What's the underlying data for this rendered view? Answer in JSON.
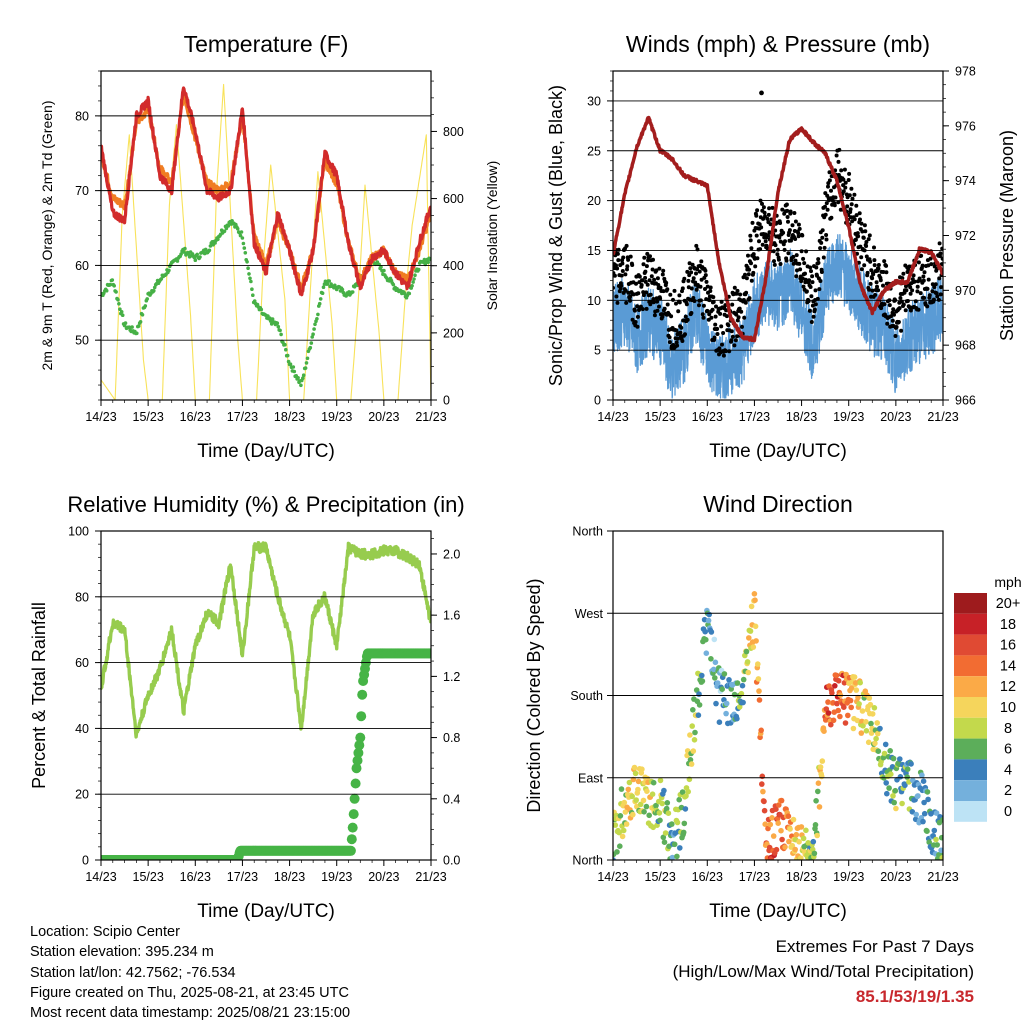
{
  "colors": {
    "temp_red": "#d22b2b",
    "temp_orange": "#f07d22",
    "dewpoint_green": "#46b046",
    "solar_yellow": "#f8e25a",
    "wind_blue": "#5a9bd5",
    "gust_black": "#000000",
    "pressure_maroon": "#a31d1d",
    "rh_lightgreen": "#97cc4e",
    "precip_green": "#46b446",
    "extremes_text": "#c8282d"
  },
  "x_axis": {
    "label": "Time (Day/UTC)",
    "ticks": [
      "14/23",
      "15/23",
      "16/23",
      "17/23",
      "18/23",
      "19/23",
      "20/23",
      "21/23"
    ]
  },
  "chart_data": [
    {
      "id": "temperature",
      "type": "line",
      "title": "Temperature (F)",
      "xlabel": "Time (Day/UTC)",
      "ylabel": "2m & 9m T (Red, Orange) & 2m Td (Green)",
      "y2label": "Solar Insolation (Yellow)",
      "ylim": [
        42,
        86
      ],
      "y2lim": [
        0,
        980
      ],
      "yticks": [
        50,
        60,
        70,
        80
      ],
      "y2ticks": [
        0,
        200,
        400,
        600,
        800
      ],
      "grid": true,
      "x": [
        0,
        0.25,
        0.5,
        0.75,
        1,
        1.25,
        1.5,
        1.75,
        2,
        2.25,
        2.5,
        2.75,
        3,
        3.25,
        3.5,
        3.75,
        4,
        4.25,
        4.5,
        4.75,
        5,
        5.25,
        5.5,
        5.75,
        6,
        6.25,
        6.5,
        6.75,
        7
      ],
      "series": [
        {
          "id": "t2m",
          "values": [
            76,
            67,
            66,
            80,
            82,
            72,
            70,
            84,
            78,
            70,
            69,
            70,
            81,
            63,
            59,
            67,
            62,
            56,
            62,
            75,
            72,
            63,
            57,
            61,
            62,
            59,
            57,
            63,
            68
          ]
        },
        {
          "id": "t9m",
          "values": [
            75,
            69,
            68,
            79,
            81,
            73,
            71,
            83,
            77,
            71,
            70,
            71,
            80,
            64,
            60,
            66,
            62,
            57,
            62,
            74,
            71,
            63,
            58,
            61,
            62,
            59,
            58,
            62,
            67
          ]
        },
        {
          "id": "td2m",
          "values": [
            56,
            58,
            52,
            51,
            56,
            58,
            60,
            62,
            61,
            62,
            64,
            66,
            64,
            55,
            53,
            52,
            47,
            44,
            51,
            58,
            57,
            56,
            58,
            61,
            59,
            57,
            56,
            60,
            61
          ]
        },
        {
          "id": "solar",
          "x": [
            0,
            0.3,
            0.45,
            0.6,
            0.9,
            1,
            1.3,
            1.45,
            1.6,
            1.9,
            2,
            2.3,
            2.45,
            2.6,
            2.9,
            3,
            3.3,
            3.45,
            3.6,
            3.9,
            4,
            4.3,
            4.45,
            4.6,
            4.9,
            5,
            5.3,
            5.45,
            5.6,
            5.9,
            6,
            6.3,
            6.45,
            6.6,
            6.9,
            7
          ],
          "values": [
            60,
            0,
            550,
            790,
            120,
            0,
            0,
            580,
            820,
            250,
            0,
            0,
            620,
            940,
            180,
            0,
            0,
            420,
            700,
            300,
            0,
            0,
            350,
            680,
            230,
            0,
            0,
            280,
            640,
            200,
            0,
            0,
            300,
            520,
            790,
            0
          ]
        }
      ]
    },
    {
      "id": "winds",
      "type": "scatter",
      "title": "Winds (mph) & Pressure (mb)",
      "xlabel": "Time (Day/UTC)",
      "ylabel": "Sonic/Prop Wind & Gust (Blue, Black)",
      "y2label": "Station Pressure (Maroon)",
      "ylim": [
        0,
        33
      ],
      "y2lim": [
        966,
        978
      ],
      "yticks": [
        0,
        5,
        10,
        15,
        20,
        25,
        30
      ],
      "y2ticks": [
        966,
        968,
        970,
        972,
        974,
        976,
        978
      ],
      "grid": true,
      "x": [
        0,
        0.25,
        0.5,
        0.75,
        1,
        1.25,
        1.5,
        1.75,
        2,
        2.25,
        2.5,
        2.75,
        3,
        3.25,
        3.5,
        3.75,
        4,
        4.25,
        4.5,
        4.75,
        5,
        5.25,
        5.5,
        5.75,
        6,
        6.25,
        6.5,
        6.75,
        7
      ],
      "series": [
        {
          "id": "wind",
          "values": [
            8,
            9,
            6,
            8,
            7,
            3,
            5,
            9,
            5,
            3,
            4,
            5,
            9,
            11,
            10,
            12,
            9,
            5,
            11,
            14,
            12,
            10,
            8,
            7,
            4,
            6,
            7,
            8,
            9
          ]
        },
        {
          "id": "gust",
          "values": [
            12,
            13,
            10,
            12,
            11,
            8,
            9,
            13,
            10,
            7,
            8,
            9,
            16,
            18,
            16,
            17,
            14,
            10,
            18,
            23,
            20,
            16,
            13,
            11,
            9,
            11,
            12,
            12,
            13
          ]
        },
        {
          "id": "pressure",
          "values": [
            971.3,
            973.5,
            975.2,
            976.3,
            975.1,
            974.8,
            974.2,
            974.0,
            973.8,
            971.0,
            969.0,
            968.3,
            968.2,
            970.5,
            973.6,
            975.5,
            975.9,
            975.4,
            975.0,
            974.0,
            972.3,
            970.2,
            969.2,
            970.0,
            970.3,
            970.3,
            971.5,
            971.4,
            970.6
          ]
        }
      ]
    },
    {
      "id": "humidity",
      "type": "line",
      "title": "Relative Humidity (%) & Precipitation (in)",
      "xlabel": "Time (Day/UTC)",
      "ylabel": "Percent & Total Rainfall",
      "ylim": [
        0,
        100
      ],
      "y2lim": [
        0,
        2.15
      ],
      "yticks": [
        0,
        20,
        40,
        60,
        80,
        100
      ],
      "y2ticks": [
        "0.0",
        "0.4",
        "0.8",
        "1.2",
        "1.6",
        "2.0"
      ],
      "grid": true,
      "x": [
        0,
        0.25,
        0.5,
        0.75,
        1,
        1.25,
        1.5,
        1.75,
        2,
        2.25,
        2.5,
        2.75,
        3,
        3.25,
        3.5,
        3.75,
        4,
        4.25,
        4.5,
        4.75,
        5,
        5.25,
        5.5,
        5.75,
        6,
        6.25,
        6.5,
        6.75,
        7
      ],
      "series": [
        {
          "id": "rh",
          "values": [
            52,
            72,
            70,
            38,
            50,
            58,
            70,
            45,
            65,
            75,
            72,
            90,
            62,
            95,
            95,
            80,
            68,
            40,
            75,
            80,
            65,
            95,
            93,
            93,
            94,
            94,
            92,
            90,
            72
          ]
        },
        {
          "id": "precip",
          "x": [
            0,
            2.9,
            2.95,
            5.3,
            5.35,
            5.42,
            5.5,
            5.55,
            5.65,
            7
          ],
          "values": [
            0,
            0,
            0.06,
            0.06,
            0.25,
            0.6,
            0.8,
            1.15,
            1.35,
            1.35
          ]
        }
      ]
    },
    {
      "id": "direction",
      "type": "scatter",
      "title": "Wind Direction",
      "xlabel": "Time (Day/UTC)",
      "ylabel": "Direction (Colored By Speed)",
      "ylim": [
        0,
        360
      ],
      "ytick_labels": [
        "North",
        "East",
        "South",
        "West",
        "North"
      ],
      "grid": true,
      "x": [
        0,
        0.25,
        0.5,
        0.75,
        1,
        1.25,
        1.5,
        1.75,
        2,
        2.25,
        2.5,
        2.75,
        3,
        3.25,
        3.5,
        3.75,
        4,
        4.25,
        4.5,
        4.75,
        5,
        5.25,
        5.5,
        5.75,
        6,
        6.25,
        6.5,
        6.75,
        7
      ],
      "series": [
        {
          "id": "dir",
          "values": [
            20,
            60,
            85,
            60,
            70,
            10,
            60,
            160,
            260,
            180,
            170,
            180,
            270,
            10,
            40,
            25,
            10,
            5,
            160,
            180,
            175,
            170,
            150,
            100,
            85,
            80,
            70,
            40,
            15
          ]
        },
        {
          "id": "speed",
          "values": [
            6,
            9,
            10,
            9,
            7,
            5,
            7,
            8,
            4,
            3,
            4,
            6,
            11,
            14,
            15,
            12,
            10,
            6,
            14,
            16,
            13,
            10,
            8,
            6,
            7,
            5,
            4,
            4,
            5
          ]
        }
      ],
      "legend": {
        "title": "mph",
        "placement": "right",
        "labels": [
          "20+",
          "18",
          "16",
          "14",
          "12",
          "10",
          "8",
          "6",
          "4",
          "2",
          "0"
        ],
        "colors": [
          "#9e1b1d",
          "#c72127",
          "#e04a33",
          "#f26c32",
          "#fbaa47",
          "#f5d55c",
          "#c3d94c",
          "#5cae5a",
          "#3b7fbb",
          "#74b0dc",
          "#bde3f5"
        ]
      }
    }
  ],
  "info": {
    "location": "Location: Scipio Center",
    "elevation": "Station elevation: 395.234 m",
    "latlon": "Station lat/lon: 42.7562; -76.534",
    "created": "Figure created on Thu, 2025-08-21, at 23:45 UTC",
    "latest": "Most recent data timestamp: 2025/08/21 23:15:00"
  },
  "extremes": {
    "title": "Extremes For Past 7 Days",
    "subtitle": "(High/Low/Max Wind/Total Precipitation)",
    "values": "85.1/53/19/1.35"
  }
}
